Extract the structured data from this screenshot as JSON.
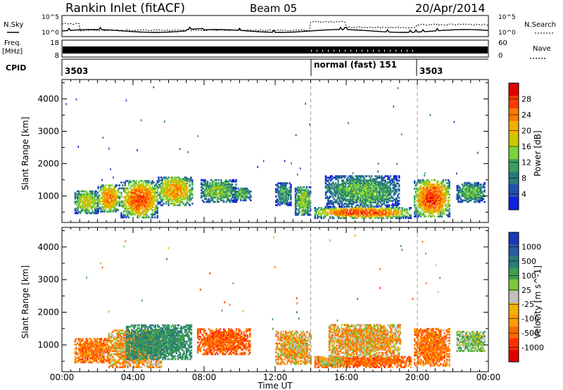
{
  "header": {
    "station": "Rankin Inlet (fitACF)",
    "beam": "Beam 05",
    "date": "20/Apr/2014"
  },
  "strip": {
    "nsky_label": "N.Sky",
    "nsearch_label": "N.Search",
    "left_top_tick": "10^5",
    "left_bottom_tick": "10^0",
    "right_top_tick": "10^5",
    "right_bottom_tick": "10^0",
    "freq_label": "Freq.",
    "freq_unit": "[MHz]",
    "freq_top": "18",
    "freq_bottom": "8",
    "nave_label": "Nave",
    "nave_top": "60",
    "nave_bottom": "0",
    "cpid_label": "CPID",
    "cpid_segments": [
      "3503",
      "normal (fast) 151",
      "3503"
    ]
  },
  "colorbars": {
    "power": {
      "label": "Power [dB]",
      "ticks": [
        "28",
        "24",
        "20",
        "16",
        "12",
        "8",
        "4"
      ],
      "colors": [
        "#e00000",
        "#ff3a00",
        "#ff7a00",
        "#f4b000",
        "#c8c800",
        "#7ad23c",
        "#3aa060",
        "#2a7a7a",
        "#2050b0",
        "#1020e0"
      ]
    },
    "velocity": {
      "label": "Velocity [m s^-1]",
      "ticks": [
        "1000",
        "500",
        "100",
        "25",
        "-25",
        "-100",
        "-500",
        "-1000"
      ],
      "colors": [
        "#1838b8",
        "#2a5aa8",
        "#2a7a7a",
        "#3aa050",
        "#7ac83a",
        "#c0c0c0",
        "#f4b000",
        "#ff9a00",
        "#ff6a00",
        "#ff3000",
        "#e00000"
      ]
    }
  },
  "chart_data": [
    {
      "type": "heatmap",
      "quantity": "power",
      "ylabel": "Slant Range [km]",
      "ylim": [
        180,
        4600
      ],
      "yticks": [
        1000,
        2000,
        3000,
        4000
      ],
      "xlim_hours": [
        0,
        24
      ],
      "clim": [
        0,
        30
      ],
      "regions": [
        {
          "t0": 0.7,
          "t1": 2.0,
          "r0": 450,
          "r1": 1150,
          "peak": 18
        },
        {
          "t0": 2.0,
          "t1": 3.2,
          "r0": 500,
          "r1": 1350,
          "peak": 24
        },
        {
          "t0": 3.3,
          "t1": 5.4,
          "r0": 320,
          "r1": 1450,
          "peak": 26
        },
        {
          "t0": 5.4,
          "t1": 7.3,
          "r0": 700,
          "r1": 1600,
          "peak": 22
        },
        {
          "t0": 7.8,
          "t1": 9.8,
          "r0": 800,
          "r1": 1500,
          "peak": 14
        },
        {
          "t0": 9.6,
          "t1": 10.6,
          "r0": 850,
          "r1": 1250,
          "peak": 12
        },
        {
          "t0": 12.0,
          "t1": 12.9,
          "r0": 700,
          "r1": 1400,
          "peak": 10
        },
        {
          "t0": 13.1,
          "t1": 14.0,
          "r0": 400,
          "r1": 1300,
          "peak": 15
        },
        {
          "t0": 14.2,
          "t1": 19.6,
          "r0": 300,
          "r1": 650,
          "peak": 27
        },
        {
          "t0": 14.8,
          "t1": 19.0,
          "r0": 650,
          "r1": 1600,
          "peak": 12
        },
        {
          "t0": 19.8,
          "t1": 21.8,
          "r0": 350,
          "r1": 1500,
          "peak": 27
        },
        {
          "t0": 22.2,
          "t1": 23.8,
          "r0": 800,
          "r1": 1400,
          "peak": 12
        }
      ]
    },
    {
      "type": "heatmap",
      "quantity": "velocity",
      "ylabel": "Slant Range [km]",
      "ylim": [
        180,
        4600
      ],
      "yticks": [
        1000,
        2000,
        3000,
        4000
      ],
      "xlim_hours": [
        0,
        24
      ],
      "xticks": [
        "00:00",
        "04:00",
        "08:00",
        "12:00",
        "16:00",
        "20:00",
        "00:00"
      ],
      "xlabel": "Time UT",
      "regions": [
        {
          "t0": 0.7,
          "t1": 2.6,
          "r0": 450,
          "r1": 1200,
          "v": -150
        },
        {
          "t0": 2.6,
          "t1": 5.6,
          "r0": 300,
          "r1": 1450,
          "v": -80
        },
        {
          "t0": 3.6,
          "t1": 7.3,
          "r0": 550,
          "r1": 1600,
          "v": 250
        },
        {
          "t0": 7.6,
          "t1": 10.6,
          "r0": 700,
          "r1": 1500,
          "v": -200
        },
        {
          "t0": 12.0,
          "t1": 14.0,
          "r0": 400,
          "r1": 1400,
          "v": -60
        },
        {
          "t0": 14.2,
          "t1": 19.6,
          "r0": 300,
          "r1": 650,
          "v": -180
        },
        {
          "t0": 14.3,
          "t1": 15.8,
          "r0": 350,
          "r1": 600,
          "v": 0
        },
        {
          "t0": 15.0,
          "t1": 19.0,
          "r0": 650,
          "r1": 1600,
          "v": -60
        },
        {
          "t0": 19.8,
          "t1": 21.8,
          "r0": 350,
          "r1": 1500,
          "v": -150
        },
        {
          "t0": 22.2,
          "t1": 23.8,
          "r0": 800,
          "r1": 1400,
          "v": 60
        }
      ]
    }
  ]
}
